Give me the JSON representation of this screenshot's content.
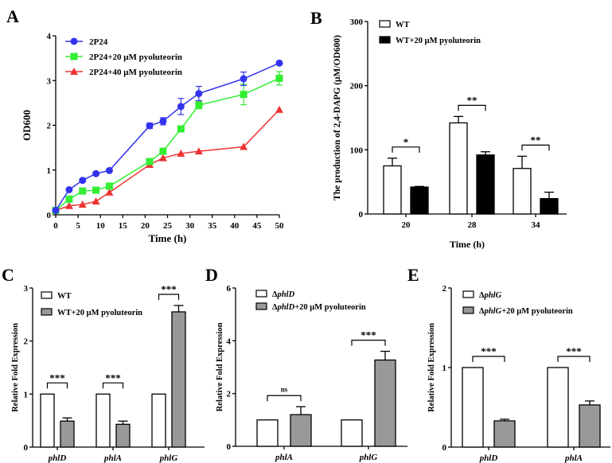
{
  "chart_data": [
    {
      "panel": "A",
      "type": "line",
      "xlabel": "Time (h)",
      "ylabel": "OD600",
      "xlim": [
        0,
        50
      ],
      "ylim": [
        0,
        4
      ],
      "xticks": [
        0,
        5,
        10,
        15,
        20,
        25,
        30,
        35,
        40,
        45,
        50
      ],
      "yticks": [
        0,
        1,
        2,
        3,
        4
      ],
      "legend_position": "top-left",
      "x": [
        0,
        3,
        6,
        9,
        12,
        21,
        24,
        28,
        32,
        42,
        50
      ],
      "series": [
        {
          "name": "2P24",
          "color": "#3333ee",
          "marker": "circle",
          "values": [
            0.1,
            0.56,
            0.77,
            0.92,
            0.99,
            1.99,
            2.09,
            2.42,
            2.71,
            3.04,
            3.39
          ],
          "errors": [
            0,
            0.02,
            0.02,
            0.02,
            0.02,
            0.06,
            0.08,
            0.18,
            0.16,
            0.15,
            0.02
          ]
        },
        {
          "name": "2P24+20 μM pyoluteorin",
          "color": "#33ee33",
          "marker": "square",
          "values": [
            0.1,
            0.35,
            0.53,
            0.55,
            0.64,
            1.19,
            1.42,
            1.92,
            2.45,
            2.69,
            3.05
          ],
          "errors": [
            0,
            0.02,
            0.02,
            0.02,
            0.02,
            0.03,
            0.03,
            0.04,
            0.08,
            0.23,
            0.15
          ]
        },
        {
          "name": "2P24+40 μM pyoluteorin",
          "color": "#ee3333",
          "marker": "triangle",
          "values": [
            0.1,
            0.2,
            0.23,
            0.3,
            0.5,
            1.12,
            1.27,
            1.37,
            1.42,
            1.52,
            2.35
          ],
          "errors": [
            0,
            0.01,
            0.01,
            0.01,
            0.02,
            0.02,
            0.02,
            0.02,
            0.02,
            0.02,
            0.03
          ]
        }
      ]
    },
    {
      "panel": "B",
      "type": "bar",
      "xlabel": "Time (h)",
      "ylabel": "The production of 2,4-DAPG (μM/OD600)",
      "ylim": [
        0,
        300
      ],
      "yticks": [
        0,
        100,
        200,
        300
      ],
      "legend_position": "top-left",
      "categories": [
        "20",
        "28",
        "34"
      ],
      "series": [
        {
          "name": "WT",
          "color": "#ffffff",
          "values": [
            75,
            142,
            71
          ],
          "errors": [
            12,
            10,
            19
          ]
        },
        {
          "name": "WT+20 μM pyoluteorin",
          "color": "#000000",
          "values": [
            42,
            92,
            24
          ],
          "errors": [
            1,
            5,
            10
          ]
        }
      ],
      "significance": [
        "*",
        "**",
        "**"
      ]
    },
    {
      "panel": "C",
      "type": "bar",
      "xlabel": "",
      "ylabel": "Relative Fold Expression",
      "ylim": [
        0,
        3
      ],
      "yticks": [
        0,
        1,
        2,
        3
      ],
      "legend_position": "top-left",
      "categories": [
        "phlD",
        "phlA",
        "phlG"
      ],
      "series": [
        {
          "name": "WT",
          "color": "#ffffff",
          "values": [
            1,
            1,
            1
          ],
          "errors": [
            0,
            0,
            0
          ]
        },
        {
          "name": "WT+20 μM pyoluteorin",
          "color": "#999999",
          "values": [
            0.49,
            0.43,
            2.55
          ],
          "errors": [
            0.06,
            0.06,
            0.12
          ]
        }
      ],
      "significance": [
        "***",
        "***",
        "***"
      ]
    },
    {
      "panel": "D",
      "type": "bar",
      "xlabel": "",
      "ylabel": "Relative Fold Expression",
      "ylim": [
        0,
        6
      ],
      "yticks": [
        0,
        2,
        4,
        6
      ],
      "legend_position": "top-left",
      "categories": [
        "phlA",
        "phlG"
      ],
      "series": [
        {
          "name": "ΔphlD",
          "color": "#ffffff",
          "values": [
            1,
            1
          ],
          "errors": [
            0,
            0
          ]
        },
        {
          "name": "ΔphlD+20 μM pyoluteorin",
          "color": "#999999",
          "values": [
            1.2,
            3.27
          ],
          "errors": [
            0.3,
            0.33
          ]
        }
      ],
      "significance": [
        "ns",
        "***"
      ]
    },
    {
      "panel": "E",
      "type": "bar",
      "xlabel": "",
      "ylabel": "Relative Fold Expression",
      "ylim": [
        0,
        2
      ],
      "yticks": [
        0,
        1,
        2
      ],
      "legend_position": "top-left",
      "categories": [
        "phlD",
        "phlA"
      ],
      "series": [
        {
          "name": "ΔphlG",
          "color": "#ffffff",
          "values": [
            1,
            1
          ],
          "errors": [
            0,
            0
          ]
        },
        {
          "name": "ΔphlG+20 μM pyoluteorin",
          "color": "#999999",
          "values": [
            0.33,
            0.53
          ],
          "errors": [
            0.02,
            0.05
          ]
        }
      ],
      "significance": [
        "***",
        "***"
      ]
    }
  ]
}
